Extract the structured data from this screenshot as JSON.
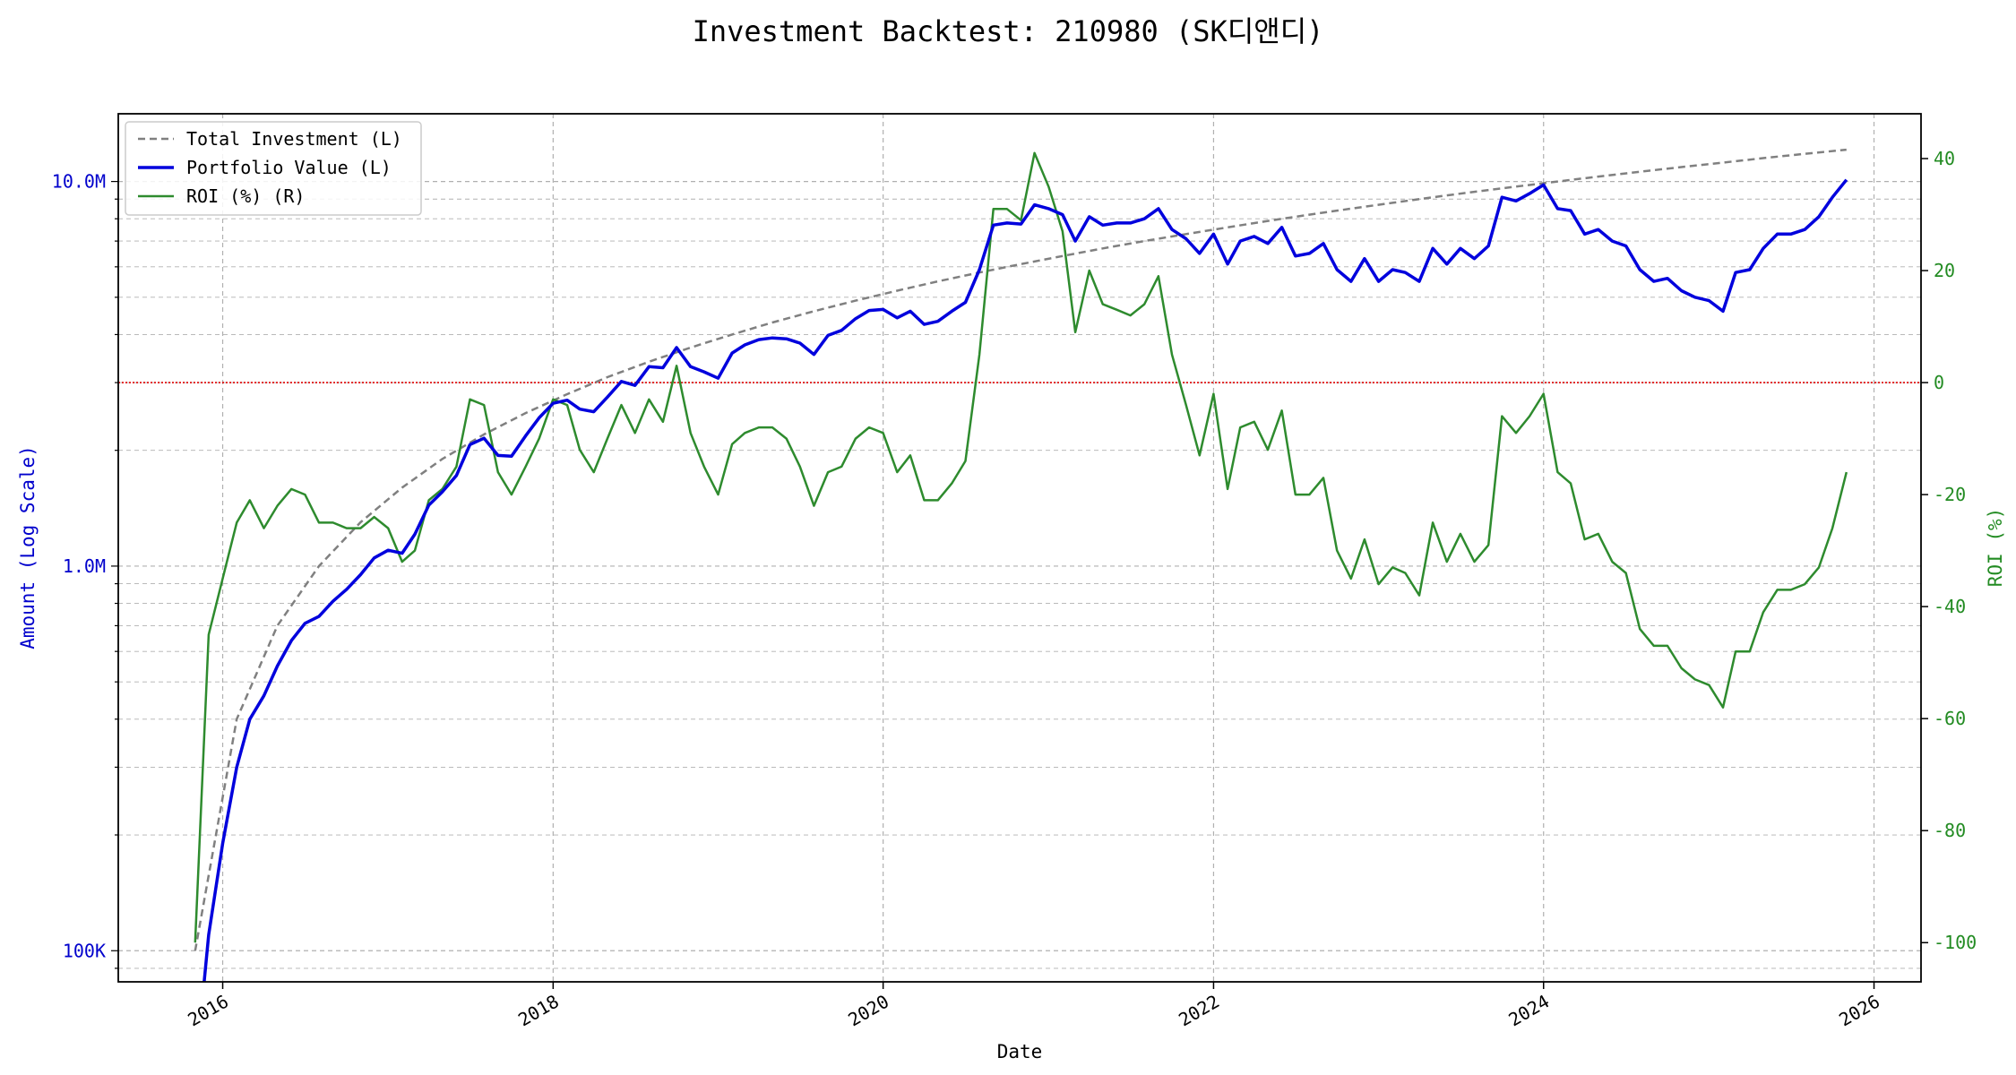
{
  "colors": {
    "investment": "#808080",
    "portfolio": "#0000dd",
    "roi": "#2e8b2e",
    "zero_line": "#dd0000",
    "left_axis_text": "#0000cc",
    "right_axis_text": "#228b22",
    "grid": "#b0b0b0",
    "text": "#000000"
  },
  "chart_data": {
    "type": "line",
    "title": "Investment Backtest: 210980 (SK디앤디)",
    "xlabel": "Date",
    "ylabel_left": "Amount (Log Scale)",
    "ylabel_right": "ROI (%)",
    "left_scale": "log",
    "ylim_left": [
      83000,
      15000000
    ],
    "ylim_right": [
      -107,
      48
    ],
    "xlim": [
      "2015-05-15",
      "2026-04-15"
    ],
    "x_ticks": [
      "2016",
      "2018",
      "2020",
      "2022",
      "2024",
      "2026"
    ],
    "y_ticks_left": [
      {
        "value": 100000,
        "label": "100K"
      },
      {
        "value": 1000000,
        "label": "1.0M"
      },
      {
        "value": 10000000,
        "label": "10.0M"
      }
    ],
    "y_ticks_right": [
      40,
      20,
      0,
      -20,
      -40,
      -60,
      -80,
      -100
    ],
    "grid": true,
    "legend_position": "top-left",
    "reference_line": {
      "axis": "right",
      "value": 0,
      "style": "dotted"
    },
    "series": [
      {
        "name": "Total Investment (L)",
        "axis": "left",
        "style": "dashed",
        "x": [
          "2015-11-01",
          "2016-02-01",
          "2016-05-01",
          "2016-08-01",
          "2016-11-01",
          "2017-02-01",
          "2017-05-01",
          "2017-08-01",
          "2017-11-01",
          "2018-02-01",
          "2018-05-01",
          "2018-08-01",
          "2018-11-01",
          "2019-02-01",
          "2019-05-01",
          "2019-08-01",
          "2019-11-01",
          "2020-02-01",
          "2020-05-01",
          "2020-08-01",
          "2020-11-01",
          "2021-02-01",
          "2021-05-01",
          "2021-08-01",
          "2021-11-01",
          "2022-02-01",
          "2022-05-01",
          "2022-08-01",
          "2022-11-01",
          "2023-02-01",
          "2023-05-01",
          "2023-08-01",
          "2023-11-01",
          "2024-02-01",
          "2024-05-01",
          "2024-08-01",
          "2024-11-01",
          "2025-02-01",
          "2025-05-01",
          "2025-08-01",
          "2025-11-01"
        ],
        "values": [
          100000,
          400000,
          700000,
          1000000,
          1300000,
          1600000,
          1900000,
          2200000,
          2500000,
          2800000,
          3100000,
          3400000,
          3700000,
          4000000,
          4300000,
          4600000,
          4900000,
          5200000,
          5500000,
          5800000,
          6100000,
          6400000,
          6700000,
          7000000,
          7300000,
          7600000,
          7900000,
          8200000,
          8500000,
          8800000,
          9100000,
          9400000,
          9700000,
          10000000,
          10300000,
          10600000,
          10900000,
          11200000,
          11500000,
          11800000,
          12100000
        ]
      },
      {
        "name": "Portfolio Value (L)",
        "axis": "left",
        "style": "solid",
        "x": [
          "2015-11-15",
          "2015-12-01",
          "2016-01-01",
          "2016-02-01",
          "2016-03-01",
          "2016-04-01",
          "2016-05-01",
          "2016-06-01",
          "2016-07-01",
          "2016-08-01",
          "2016-09-01",
          "2016-10-01",
          "2016-11-01",
          "2016-12-01",
          "2017-01-01",
          "2017-02-01",
          "2017-03-01",
          "2017-04-01",
          "2017-05-01",
          "2017-06-01",
          "2017-07-01",
          "2017-08-01",
          "2017-09-01",
          "2017-10-01",
          "2017-11-01",
          "2017-12-01",
          "2018-01-01",
          "2018-02-01",
          "2018-03-01",
          "2018-04-01",
          "2018-05-01",
          "2018-06-01",
          "2018-07-01",
          "2018-08-01",
          "2018-09-01",
          "2018-10-01",
          "2018-11-01",
          "2018-12-01",
          "2019-01-01",
          "2019-02-01",
          "2019-03-01",
          "2019-04-01",
          "2019-05-01",
          "2019-06-01",
          "2019-07-01",
          "2019-08-01",
          "2019-09-01",
          "2019-10-01",
          "2019-11-01",
          "2019-12-01",
          "2020-01-01",
          "2020-02-01",
          "2020-03-01",
          "2020-04-01",
          "2020-05-01",
          "2020-06-01",
          "2020-07-01",
          "2020-08-01",
          "2020-09-01",
          "2020-10-01",
          "2020-11-01",
          "2020-12-01",
          "2021-01-01",
          "2021-02-01",
          "2021-03-01",
          "2021-04-01",
          "2021-05-01",
          "2021-06-01",
          "2021-07-01",
          "2021-08-01",
          "2021-09-01",
          "2021-10-01",
          "2021-11-01",
          "2021-12-01",
          "2022-01-01",
          "2022-02-01",
          "2022-03-01",
          "2022-04-01",
          "2022-05-01",
          "2022-06-01",
          "2022-07-01",
          "2022-08-01",
          "2022-09-01",
          "2022-10-01",
          "2022-11-01",
          "2022-12-01",
          "2023-01-01",
          "2023-02-01",
          "2023-03-01",
          "2023-04-01",
          "2023-05-01",
          "2023-06-01",
          "2023-07-01",
          "2023-08-01",
          "2023-09-01",
          "2023-10-01",
          "2023-11-01",
          "2023-12-01",
          "2024-01-01",
          "2024-02-01",
          "2024-03-01",
          "2024-04-01",
          "2024-05-01",
          "2024-06-01",
          "2024-07-01",
          "2024-08-01",
          "2024-09-01",
          "2024-10-01",
          "2024-11-01",
          "2024-12-01",
          "2025-01-01",
          "2025-02-01",
          "2025-03-01",
          "2025-04-01",
          "2025-05-01",
          "2025-06-01",
          "2025-07-01",
          "2025-08-01",
          "2025-09-01",
          "2025-10-01",
          "2025-11-01"
        ],
        "values": [
          70000,
          110000,
          190000,
          300000,
          400000,
          460000,
          550000,
          640000,
          710000,
          740000,
          810000,
          870000,
          950000,
          1050000,
          1100000,
          1080000,
          1210000,
          1440000,
          1560000,
          1720000,
          2070000,
          2150000,
          1940000,
          1930000,
          2180000,
          2430000,
          2650000,
          2700000,
          2560000,
          2520000,
          2750000,
          3020000,
          2950000,
          3300000,
          3280000,
          3700000,
          3300000,
          3200000,
          3080000,
          3580000,
          3760000,
          3880000,
          3920000,
          3900000,
          3800000,
          3550000,
          3980000,
          4100000,
          4400000,
          4620000,
          4650000,
          4420000,
          4600000,
          4250000,
          4330000,
          4600000,
          4850000,
          5900000,
          7700000,
          7800000,
          7750000,
          8700000,
          8500000,
          8200000,
          7000000,
          8100000,
          7700000,
          7800000,
          7800000,
          8000000,
          8500000,
          7500000,
          7100000,
          6500000,
          7300000,
          6100000,
          7000000,
          7200000,
          6900000,
          7600000,
          6400000,
          6500000,
          6900000,
          5900000,
          5500000,
          6300000,
          5500000,
          5900000,
          5800000,
          5500000,
          6700000,
          6100000,
          6700000,
          6300000,
          6800000,
          9100000,
          8900000,
          9300000,
          9800000,
          8500000,
          8400000,
          7300000,
          7500000,
          7000000,
          6800000,
          5900000,
          5500000,
          5600000,
          5200000,
          5000000,
          4900000,
          4600000,
          5800000,
          5900000,
          6700000,
          7300000,
          7300000,
          7500000,
          8100000,
          9100000,
          10100000
        ]
      },
      {
        "name": "ROI (%) (R)",
        "axis": "right",
        "style": "solid",
        "x": [
          "2015-11-01",
          "2015-12-01",
          "2016-01-01",
          "2016-02-01",
          "2016-03-01",
          "2016-04-01",
          "2016-05-01",
          "2016-06-01",
          "2016-07-01",
          "2016-08-01",
          "2016-09-01",
          "2016-10-01",
          "2016-11-01",
          "2016-12-01",
          "2017-01-01",
          "2017-02-01",
          "2017-03-01",
          "2017-04-01",
          "2017-05-01",
          "2017-06-01",
          "2017-07-01",
          "2017-08-01",
          "2017-09-01",
          "2017-10-01",
          "2017-11-01",
          "2017-12-01",
          "2018-01-01",
          "2018-02-01",
          "2018-03-01",
          "2018-04-01",
          "2018-05-01",
          "2018-06-01",
          "2018-07-01",
          "2018-08-01",
          "2018-09-01",
          "2018-10-01",
          "2018-11-01",
          "2018-12-01",
          "2019-01-01",
          "2019-02-01",
          "2019-03-01",
          "2019-04-01",
          "2019-05-01",
          "2019-06-01",
          "2019-07-01",
          "2019-08-01",
          "2019-09-01",
          "2019-10-01",
          "2019-11-01",
          "2019-12-01",
          "2020-01-01",
          "2020-02-01",
          "2020-03-01",
          "2020-04-01",
          "2020-05-01",
          "2020-06-01",
          "2020-07-01",
          "2020-08-01",
          "2020-09-01",
          "2020-10-01",
          "2020-11-01",
          "2020-12-01",
          "2021-01-01",
          "2021-02-01",
          "2021-03-01",
          "2021-04-01",
          "2021-05-01",
          "2021-06-01",
          "2021-07-01",
          "2021-08-01",
          "2021-09-01",
          "2021-10-01",
          "2021-11-01",
          "2021-12-01",
          "2022-01-01",
          "2022-02-01",
          "2022-03-01",
          "2022-04-01",
          "2022-05-01",
          "2022-06-01",
          "2022-07-01",
          "2022-08-01",
          "2022-09-01",
          "2022-10-01",
          "2022-11-01",
          "2022-12-01",
          "2023-01-01",
          "2023-02-01",
          "2023-03-01",
          "2023-04-01",
          "2023-05-01",
          "2023-06-01",
          "2023-07-01",
          "2023-08-01",
          "2023-09-01",
          "2023-10-01",
          "2023-11-01",
          "2023-12-01",
          "2024-01-01",
          "2024-02-01",
          "2024-03-01",
          "2024-04-01",
          "2024-05-01",
          "2024-06-01",
          "2024-07-01",
          "2024-08-01",
          "2024-09-01",
          "2024-10-01",
          "2024-11-01",
          "2024-12-01",
          "2025-01-01",
          "2025-02-01",
          "2025-03-01",
          "2025-04-01",
          "2025-05-01",
          "2025-06-01",
          "2025-07-01",
          "2025-08-01",
          "2025-09-01",
          "2025-10-01",
          "2025-11-01"
        ],
        "values": [
          -100,
          -45,
          -35,
          -25,
          -21,
          -26,
          -22,
          -19,
          -20,
          -25,
          -25,
          -26,
          -26,
          -24,
          -26,
          -32,
          -30,
          -21,
          -19,
          -15,
          -3,
          -4,
          -16,
          -20,
          -15,
          -10,
          -3,
          -4,
          -12,
          -16,
          -10,
          -4,
          -9,
          -3,
          -7,
          3,
          -9,
          -15,
          -20,
          -11,
          -9,
          -8,
          -8,
          -10,
          -15,
          -22,
          -16,
          -15,
          -10,
          -8,
          -9,
          -16,
          -13,
          -21,
          -21,
          -18,
          -14,
          5,
          31,
          31,
          29,
          41,
          35,
          27,
          9,
          20,
          14,
          13,
          12,
          14,
          19,
          5,
          -4,
          -13,
          -2,
          -19,
          -8,
          -7,
          -12,
          -5,
          -20,
          -20,
          -17,
          -30,
          -35,
          -28,
          -36,
          -33,
          -34,
          -38,
          -25,
          -32,
          -27,
          -32,
          -29,
          -6,
          -9,
          -6,
          -2,
          -16,
          -18,
          -28,
          -27,
          -32,
          -34,
          -44,
          -47,
          -47,
          -51,
          -53,
          -54,
          -58,
          -48,
          -48,
          -41,
          -37,
          -37,
          -36,
          -33,
          -26,
          -16
        ]
      }
    ]
  }
}
